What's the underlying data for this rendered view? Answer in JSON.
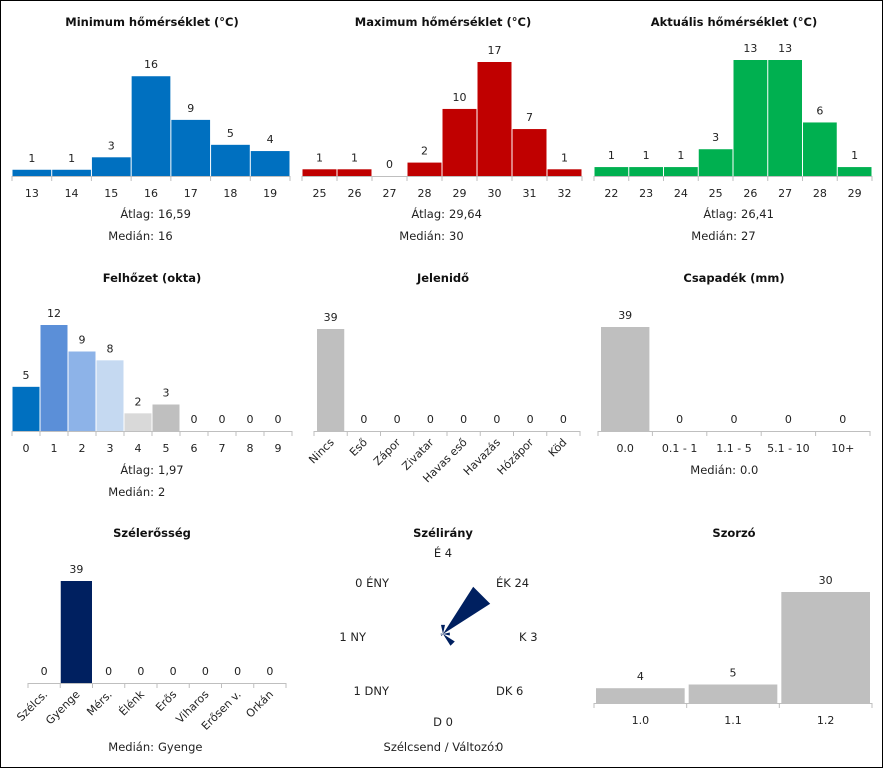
{
  "charts": [
    {
      "id": "tmin",
      "type": "bar",
      "title": "Minimum hőmérséklet (°C)",
      "categories": [
        "13",
        "14",
        "15",
        "16",
        "17",
        "18",
        "19"
      ],
      "values": [
        1,
        1,
        3,
        16,
        9,
        5,
        4
      ],
      "colors": [
        "#0070c0"
      ],
      "ylim": [
        0,
        17
      ],
      "stats": [
        {
          "label": "Átlag:",
          "value": "16,59"
        },
        {
          "label": "Medián:",
          "value": "16"
        }
      ]
    },
    {
      "id": "tmax",
      "type": "bar",
      "title": "Maximum hőmérséklet (°C)",
      "categories": [
        "25",
        "26",
        "27",
        "28",
        "29",
        "30",
        "31",
        "32"
      ],
      "values": [
        1,
        1,
        0,
        2,
        10,
        17,
        7,
        1
      ],
      "colors": [
        "#c00000"
      ],
      "ylim": [
        0,
        17
      ],
      "stats": [
        {
          "label": "Átlag:",
          "value": "29,64"
        },
        {
          "label": "Medián:",
          "value": "30"
        }
      ]
    },
    {
      "id": "tcur",
      "type": "bar",
      "title": "Aktuális hőmérséklet (°C)",
      "categories": [
        "22",
        "23",
        "24",
        "25",
        "26",
        "27",
        "28",
        "29"
      ],
      "values": [
        1,
        1,
        1,
        3,
        13,
        13,
        6,
        1
      ],
      "colors": [
        "#00b050"
      ],
      "ylim": [
        0,
        13
      ],
      "stats": [
        {
          "label": "Átlag:",
          "value": "26,41"
        },
        {
          "label": "Medián:",
          "value": "27"
        }
      ]
    },
    {
      "id": "cloud",
      "type": "bar",
      "title": "Felhőzet (okta)",
      "categories": [
        "0",
        "1",
        "2",
        "3",
        "4",
        "5",
        "6",
        "7",
        "8",
        "9"
      ],
      "values": [
        5,
        12,
        9,
        8,
        2,
        3,
        0,
        0,
        0,
        0
      ],
      "colors": [
        "#0070c0",
        "#5b8fd8",
        "#8db3e8",
        "#c5d9f1",
        "#d9d9d9",
        "#bfbfbf",
        "#bfbfbf",
        "#bfbfbf",
        "#bfbfbf",
        "#bfbfbf"
      ],
      "ylim": [
        0,
        12
      ],
      "stats": [
        {
          "label": "Átlag:",
          "value": "1,97"
        },
        {
          "label": "Medián:",
          "value": "2"
        }
      ]
    },
    {
      "id": "wx",
      "type": "bar",
      "title": "Jelenidő",
      "categories": [
        "Nincs",
        "Eső",
        "Zápor",
        "Zivatar",
        "Havas eső",
        "Havazás",
        "Hózápor",
        "Köd"
      ],
      "values": [
        39,
        0,
        0,
        0,
        0,
        0,
        0,
        0
      ],
      "colors": [
        "#bfbfbf"
      ],
      "ylim": [
        0,
        39
      ],
      "rotated": true,
      "stats": []
    },
    {
      "id": "precip",
      "type": "bar",
      "title": "Csapadék (mm)",
      "categories": [
        "0.0",
        "0.1 - 1",
        "1.1 - 5",
        "5.1 - 10",
        "10+"
      ],
      "values": [
        39,
        0,
        0,
        0,
        0
      ],
      "colors": [
        "#bfbfbf"
      ],
      "ylim": [
        0,
        39
      ],
      "stats": [
        {
          "label": "Medián:",
          "value": "0.0"
        }
      ]
    },
    {
      "id": "windspd",
      "type": "bar",
      "title": "Szélerősség",
      "categories": [
        "Szélcs.",
        "Gyenge",
        "Mérs.",
        "Élénk",
        "Erős",
        "Viharos",
        "Erősen v.",
        "Orkán"
      ],
      "values": [
        0,
        39,
        0,
        0,
        0,
        0,
        0,
        0
      ],
      "colors": [
        "#002060"
      ],
      "ylim": [
        0,
        39
      ],
      "rotated": true,
      "stats": [
        {
          "label": "Medián:",
          "value": "Gyenge"
        }
      ]
    },
    {
      "id": "mult",
      "type": "bar",
      "title": "Szorzó",
      "categories": [
        "1.0",
        "1.1",
        "1.2"
      ],
      "values": [
        4,
        5,
        30
      ],
      "colors": [
        "#bfbfbf"
      ],
      "ylim": [
        0,
        30
      ],
      "stats": []
    }
  ],
  "wind_direction": {
    "title": "Szélirány",
    "type": "rose",
    "directions": [
      {
        "label": "É",
        "count": 4
      },
      {
        "label": "ÉK",
        "count": 24
      },
      {
        "label": "K",
        "count": 3
      },
      {
        "label": "DK",
        "count": 6
      },
      {
        "label": "D",
        "count": 0
      },
      {
        "label": "DNY",
        "count": 1
      },
      {
        "label": "NY",
        "count": 1
      },
      {
        "label": "ÉNY",
        "count": 0
      }
    ],
    "calm_label": "Szélcsend / Változó:",
    "calm_value": "0",
    "color": "#002060"
  }
}
